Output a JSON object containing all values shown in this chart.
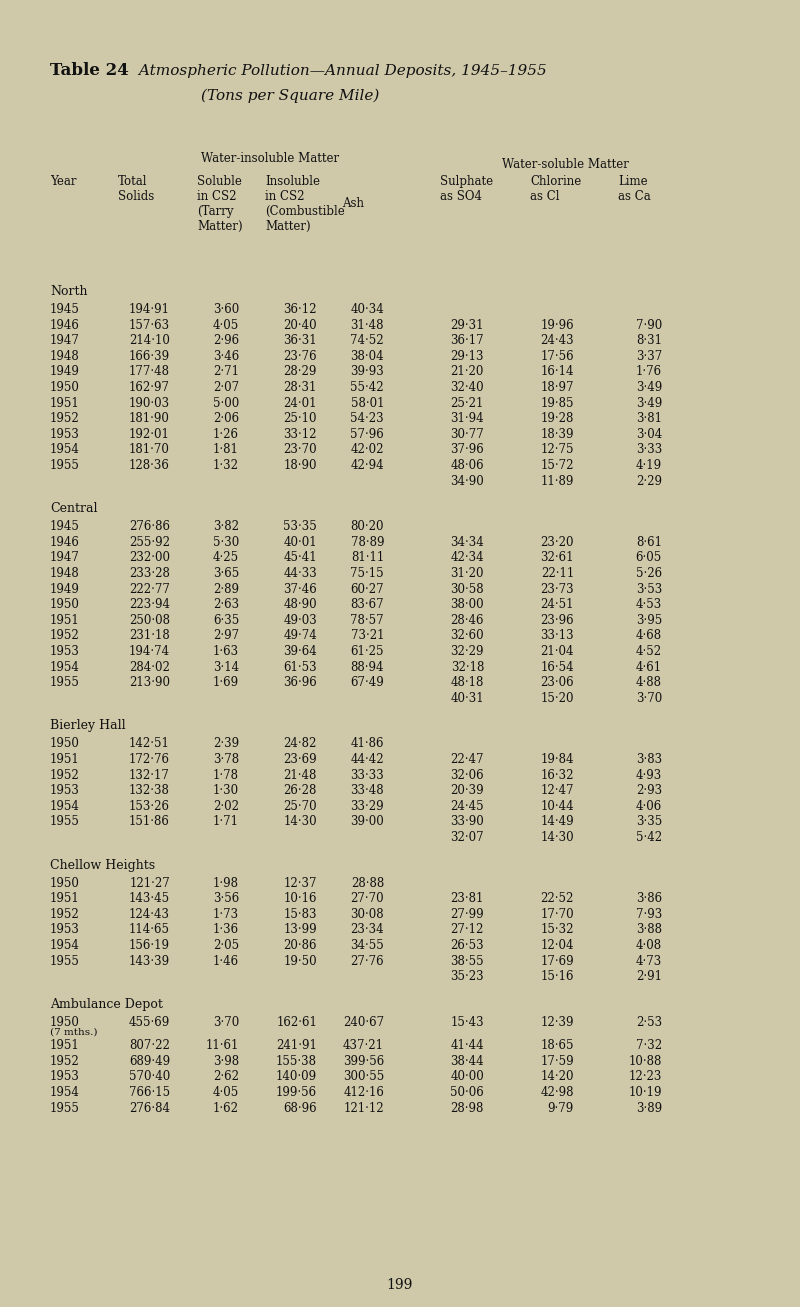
{
  "title_bold": "Table 24",
  "title_italic": " Atmospheric Pollution—Annual Deposits, 1945–1955",
  "subtitle": "(Tons per Square Mile)",
  "bg_color": "#cfc9aa",
  "text_color": "#111111",
  "col_x": {
    "year": 50,
    "total": 118,
    "soluble": 197,
    "insoluble": 265,
    "ash": 342,
    "sulphate": 440,
    "chlorine": 530,
    "lime": 618
  },
  "sections": [
    {
      "name": "North",
      "rows": [
        [
          "1945",
          "194·91",
          "3·60",
          "36·12",
          "40·34",
          "",
          "",
          ""
        ],
        [
          "1946",
          "157·63",
          "4·05",
          "20·40",
          "31·48",
          "29·31",
          "19·96",
          "7·90"
        ],
        [
          "1947",
          "214·10",
          "2·96",
          "36·31",
          "74·52",
          "36·17",
          "24·43",
          "8·31"
        ],
        [
          "1948",
          "166·39",
          "3·46",
          "23·76",
          "38·04",
          "29·13",
          "17·56",
          "3·37"
        ],
        [
          "1949",
          "177·48",
          "2·71",
          "28·29",
          "39·93",
          "21·20",
          "16·14",
          "1·76"
        ],
        [
          "1950",
          "162·97",
          "2·07",
          "28·31",
          "55·42",
          "32·40",
          "18·97",
          "3·49"
        ],
        [
          "1951",
          "190·03",
          "5·00",
          "24·01",
          "58·01",
          "25·21",
          "19·85",
          "3·49"
        ],
        [
          "1952",
          "181·90",
          "2·06",
          "25·10",
          "54·23",
          "31·94",
          "19·28",
          "3·81"
        ],
        [
          "1953",
          "192·01",
          "1·26",
          "33·12",
          "57·96",
          "30·77",
          "18·39",
          "3·04"
        ],
        [
          "1954",
          "181·70",
          "1·81",
          "23·70",
          "42·02",
          "37·96",
          "12·75",
          "3·33"
        ],
        [
          "1955",
          "128·36",
          "1·32",
          "18·90",
          "42·94",
          "48·06",
          "15·72",
          "4·19"
        ],
        [
          "",
          "",
          "",
          "",
          "",
          "34·90",
          "11·89",
          "2·29"
        ]
      ]
    },
    {
      "name": "Central",
      "rows": [
        [
          "1945",
          "276·86",
          "3·82",
          "53·35",
          "80·20",
          "",
          "",
          ""
        ],
        [
          "1946",
          "255·92",
          "5·30",
          "40·01",
          "78·89",
          "34·34",
          "23·20",
          "8·61"
        ],
        [
          "1947",
          "232·00",
          "4·25",
          "45·41",
          "81·11",
          "42·34",
          "32·61",
          "6·05"
        ],
        [
          "1948",
          "233·28",
          "3·65",
          "44·33",
          "75·15",
          "31·20",
          "22·11",
          "5·26"
        ],
        [
          "1949",
          "222·77",
          "2·89",
          "37·46",
          "60·27",
          "30·58",
          "23·73",
          "3·53"
        ],
        [
          "1950",
          "223·94",
          "2·63",
          "48·90",
          "83·67",
          "38·00",
          "24·51",
          "4·53"
        ],
        [
          "1951",
          "250·08",
          "6·35",
          "49·03",
          "78·57",
          "28·46",
          "23·96",
          "3·95"
        ],
        [
          "1952",
          "231·18",
          "2·97",
          "49·74",
          "73·21",
          "32·60",
          "33·13",
          "4·68"
        ],
        [
          "1953",
          "194·74",
          "1·63",
          "39·64",
          "61·25",
          "32·29",
          "21·04",
          "4·52"
        ],
        [
          "1954",
          "284·02",
          "3·14",
          "61·53",
          "88·94",
          "32·18",
          "16·54",
          "4·61"
        ],
        [
          "1955",
          "213·90",
          "1·69",
          "36·96",
          "67·49",
          "48·18",
          "23·06",
          "4·88"
        ],
        [
          "",
          "",
          "",
          "",
          "",
          "40·31",
          "15·20",
          "3·70"
        ]
      ]
    },
    {
      "name": "Bierley Hall",
      "rows": [
        [
          "1950",
          "142·51",
          "2·39",
          "24·82",
          "41·86",
          "",
          "",
          ""
        ],
        [
          "1951",
          "172·76",
          "3·78",
          "23·69",
          "44·42",
          "22·47",
          "19·84",
          "3·83"
        ],
        [
          "1952",
          "132·17",
          "1·78",
          "21·48",
          "33·33",
          "32·06",
          "16·32",
          "4·93"
        ],
        [
          "1953",
          "132·38",
          "1·30",
          "26·28",
          "33·48",
          "20·39",
          "12·47",
          "2·93"
        ],
        [
          "1954",
          "153·26",
          "2·02",
          "25·70",
          "33·29",
          "24·45",
          "10·44",
          "4·06"
        ],
        [
          "1955",
          "151·86",
          "1·71",
          "14·30",
          "39·00",
          "33·90",
          "14·49",
          "3·35"
        ],
        [
          "",
          "",
          "",
          "",
          "",
          "32·07",
          "14·30",
          "5·42"
        ]
      ]
    },
    {
      "name": "Chellow Heights",
      "rows": [
        [
          "1950",
          "121·27",
          "1·98",
          "12·37",
          "28·88",
          "",
          "",
          ""
        ],
        [
          "1951",
          "143·45",
          "3·56",
          "10·16",
          "27·70",
          "23·81",
          "22·52",
          "3·86"
        ],
        [
          "1952",
          "124·43",
          "1·73",
          "15·83",
          "30·08",
          "27·99",
          "17·70",
          "7·93"
        ],
        [
          "1953",
          "114·65",
          "1·36",
          "13·99",
          "23·34",
          "27·12",
          "15·32",
          "3·88"
        ],
        [
          "1954",
          "156·19",
          "2·05",
          "20·86",
          "34·55",
          "26·53",
          "12·04",
          "4·08"
        ],
        [
          "1955",
          "143·39",
          "1·46",
          "19·50",
          "27·76",
          "38·55",
          "17·69",
          "4·73"
        ],
        [
          "",
          "",
          "",
          "",
          "",
          "35·23",
          "15·16",
          "2·91"
        ]
      ]
    },
    {
      "name": "Ambulance Depot",
      "rows": [
        [
          "1950",
          "(7 mths.)",
          "455·69",
          "3·70",
          "162·61",
          "240·67",
          "15·43",
          "12·39",
          "2·53"
        ],
        [
          "1951",
          "",
          "807·22",
          "11·61",
          "241·91",
          "437·21",
          "41·44",
          "18·65",
          "7·32"
        ],
        [
          "1952",
          "",
          "689·49",
          "3·98",
          "155·38",
          "399·56",
          "38·44",
          "17·59",
          "10·88"
        ],
        [
          "1953",
          "",
          "570·40",
          "2·62",
          "140·09",
          "300·55",
          "40·00",
          "14·20",
          "12·23"
        ],
        [
          "1954",
          "",
          "766·15",
          "4·05",
          "199·56",
          "412·16",
          "50·06",
          "42·98",
          "10·19"
        ],
        [
          "1955",
          "",
          "276·84",
          "1·62",
          "68·96",
          "121·12",
          "28·98",
          "9·79",
          "3·89"
        ]
      ]
    }
  ],
  "page_number": "199"
}
